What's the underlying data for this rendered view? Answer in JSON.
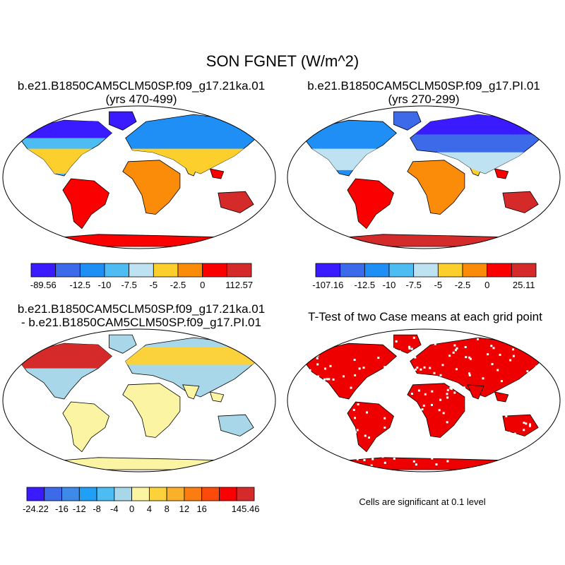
{
  "main_title": "SON FGNET (W/m^2)",
  "chart_data": [
    {
      "type": "heatmap",
      "panel": "top-left",
      "title": "b.e21.B1850CAM5CLM50SP.f09_g17.21ka.01",
      "subtitle": "(yrs 470-499)",
      "colorbar": {
        "colors": [
          "#3a1aff",
          "#3d6ae9",
          "#1f8ff6",
          "#4dbcf2",
          "#bfe2f2",
          "#fccf2c",
          "#fa8c0a",
          "#fb0000",
          "#d42a2a"
        ],
        "labels": [
          "-89.56",
          "-12.5",
          "-10",
          "-7.5",
          "-5",
          "-2.5",
          "0",
          "112.57"
        ]
      }
    },
    {
      "type": "heatmap",
      "panel": "top-right",
      "title": "b.e21.B1850CAM5CLM50SP.f09_g17.PI.01",
      "subtitle": "(yrs 270-299)",
      "colorbar": {
        "colors": [
          "#3a1aff",
          "#3d6ae9",
          "#1f8ff6",
          "#4dbcf2",
          "#bfe2f2",
          "#fccf2c",
          "#fa8c0a",
          "#fb0000",
          "#d42a2a"
        ],
        "labels": [
          "-107.16",
          "-12.5",
          "-10",
          "-7.5",
          "-5",
          "-2.5",
          "0",
          "25.11"
        ]
      }
    },
    {
      "type": "heatmap",
      "panel": "bottom-left",
      "title": "b.e21.B1850CAM5CLM50SP.f09_g17.21ka.01",
      "subtitle": "- b.e21.B1850CAM5CLM50SP.f09_g17.PI.01",
      "colorbar": {
        "colors": [
          "#3a1aff",
          "#3d6ae9",
          "#3d8ae9",
          "#1fa0f6",
          "#4dbcf2",
          "#a9d7ea",
          "#fbf4a2",
          "#fcd23c",
          "#fbb02a",
          "#fb7d12",
          "#fb4a0a",
          "#fb0000",
          "#d42a2a"
        ],
        "labels": [
          "-24.22",
          "-16",
          "-12",
          "-8",
          "-4",
          "0",
          "4",
          "8",
          "12",
          "16",
          "145.46"
        ]
      }
    },
    {
      "type": "heatmap",
      "panel": "bottom-right",
      "title": "T-Test of two Case means at each grid point",
      "note": "Cells are significant at 0.1 level"
    }
  ]
}
